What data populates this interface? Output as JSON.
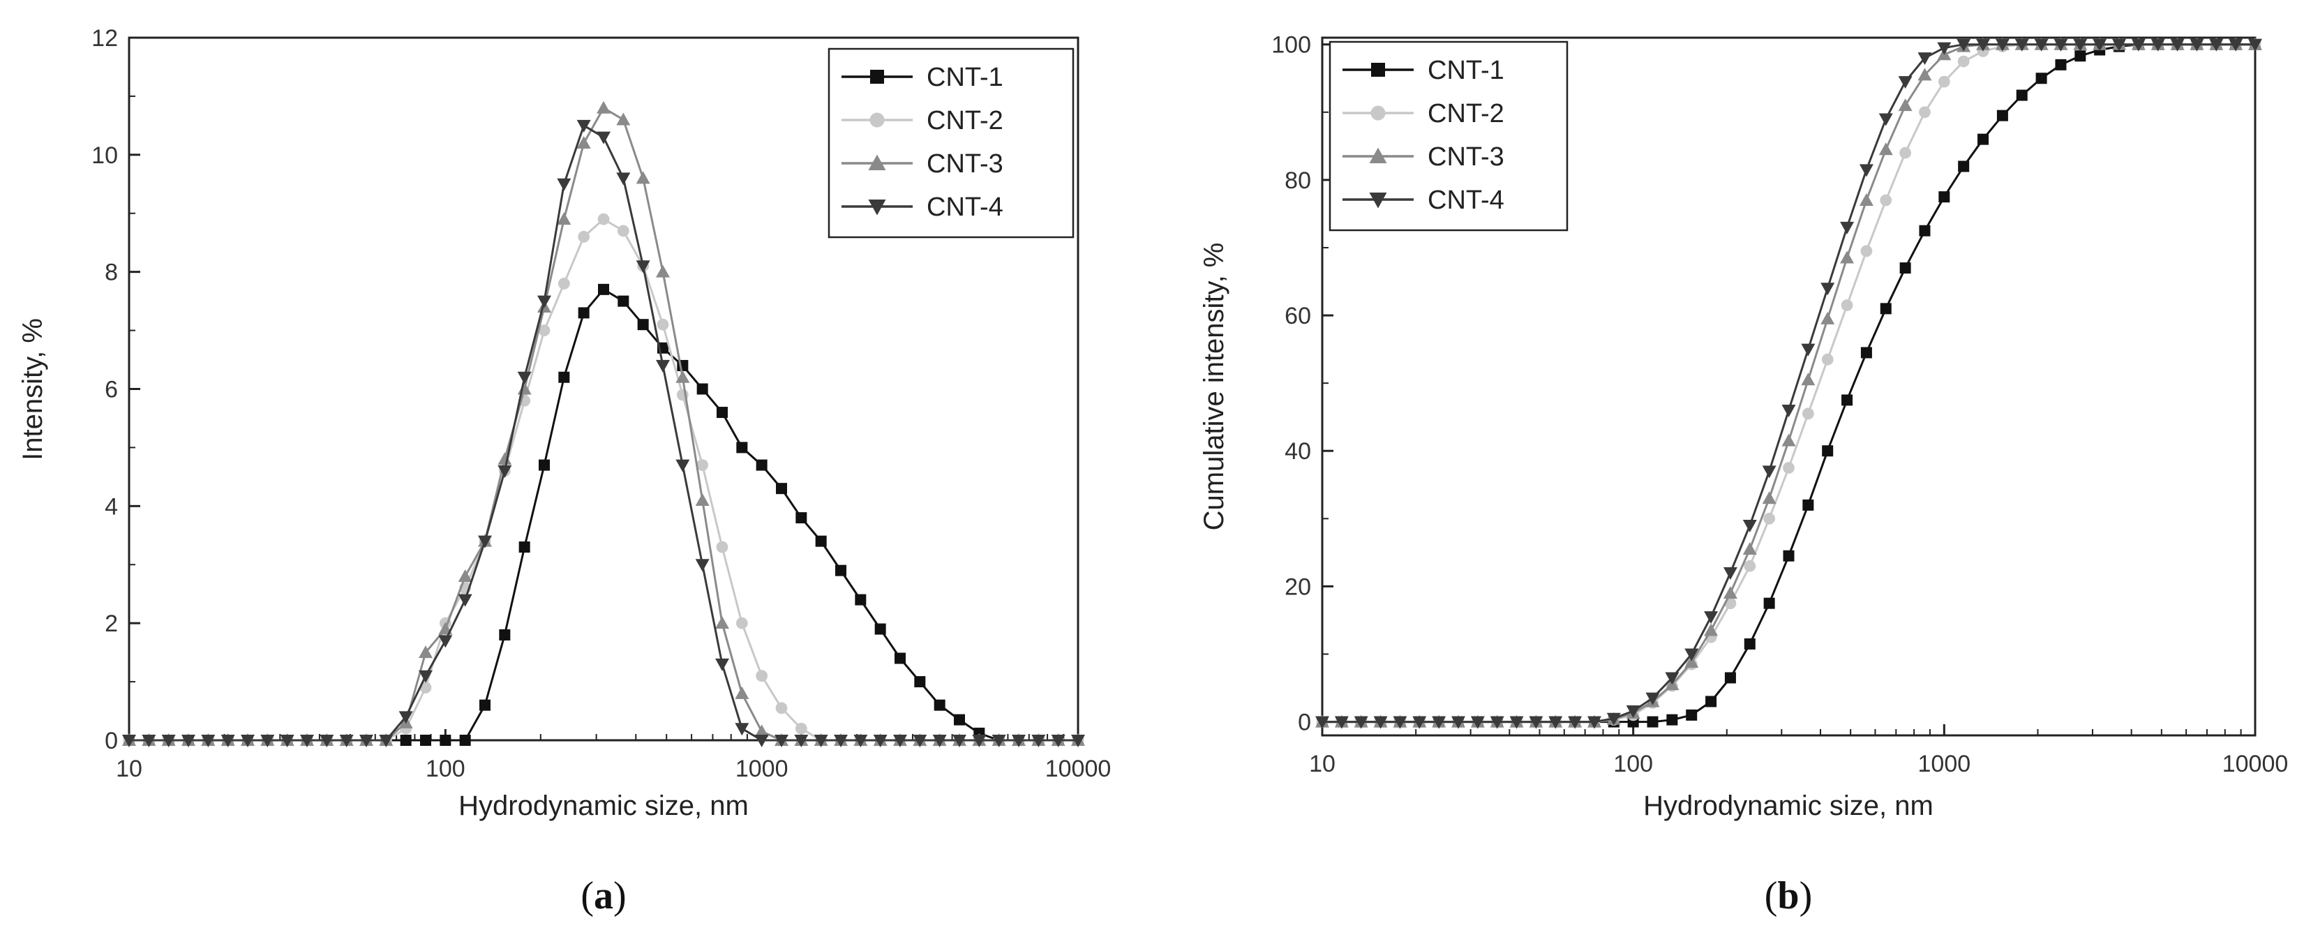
{
  "chart_data": [
    {
      "type": "line",
      "panel_label_open": "(",
      "panel_label_letter": "a",
      "panel_label_close": ")",
      "xlabel": "Hydrodynamic size, nm",
      "ylabel": "Intensity, %",
      "xscale": "log",
      "xlim": [
        10,
        10000
      ],
      "ylim": [
        0,
        12
      ],
      "xticks": [
        10,
        100,
        1000,
        10000
      ],
      "xtick_labels": [
        "10",
        "100",
        "1000",
        "10000"
      ],
      "yticks": [
        0,
        2,
        4,
        6,
        8,
        10,
        12
      ],
      "ytick_labels": [
        "0",
        "2",
        "4",
        "6",
        "8",
        "10",
        "12"
      ],
      "legend_position": "top-right",
      "x_start_log": 1.0,
      "x_step_log": 0.0625,
      "series": [
        {
          "name": "CNT-1",
          "marker": "square",
          "color": "#111111",
          "values": [
            0,
            0,
            0,
            0,
            0,
            0,
            0,
            0,
            0,
            0,
            0,
            0,
            0,
            0,
            0,
            0,
            0,
            0,
            0.6,
            1.8,
            3.3,
            4.7,
            6.2,
            7.3,
            7.7,
            7.5,
            7.1,
            6.7,
            6.4,
            6.0,
            5.6,
            5.0,
            4.7,
            4.3,
            3.8,
            3.4,
            2.9,
            2.4,
            1.9,
            1.4,
            1.0,
            0.6,
            0.35,
            0.12,
            0,
            0,
            0,
            0,
            0
          ]
        },
        {
          "name": "CNT-2",
          "marker": "circle",
          "color": "#c8c8c8",
          "values": [
            0,
            0,
            0,
            0,
            0,
            0,
            0,
            0,
            0,
            0,
            0,
            0,
            0,
            0,
            0.2,
            0.9,
            2.0,
            2.6,
            3.4,
            4.6,
            5.8,
            7.0,
            7.8,
            8.6,
            8.9,
            8.7,
            8.1,
            7.1,
            5.9,
            4.7,
            3.3,
            2.0,
            1.1,
            0.55,
            0.2,
            0,
            0,
            0,
            0,
            0,
            0,
            0,
            0,
            0,
            0,
            0,
            0,
            0,
            0
          ]
        },
        {
          "name": "CNT-3",
          "marker": "triangle-up",
          "color": "#8a8a8a",
          "values": [
            0,
            0,
            0,
            0,
            0,
            0,
            0,
            0,
            0,
            0,
            0,
            0,
            0,
            0,
            0.3,
            1.5,
            1.9,
            2.8,
            3.4,
            4.8,
            6.0,
            7.4,
            8.9,
            10.2,
            10.8,
            10.6,
            9.6,
            8.0,
            6.2,
            4.1,
            2.0,
            0.8,
            0.15,
            0,
            0,
            0,
            0,
            0,
            0,
            0,
            0,
            0,
            0,
            0,
            0,
            0,
            0,
            0,
            0
          ]
        },
        {
          "name": "CNT-4",
          "marker": "triangle-down",
          "color": "#3a3a3a",
          "values": [
            0,
            0,
            0,
            0,
            0,
            0,
            0,
            0,
            0,
            0,
            0,
            0,
            0,
            0,
            0.4,
            1.1,
            1.7,
            2.4,
            3.4,
            4.6,
            6.2,
            7.5,
            9.5,
            10.5,
            10.3,
            9.6,
            8.1,
            6.4,
            4.7,
            3.0,
            1.3,
            0.2,
            0,
            0,
            0,
            0,
            0,
            0,
            0,
            0,
            0,
            0,
            0,
            0,
            0,
            0,
            0,
            0,
            0
          ]
        }
      ]
    },
    {
      "type": "line",
      "panel_label_open": "(",
      "panel_label_letter": "b",
      "panel_label_close": ")",
      "xlabel": "Hydrodynamic size, nm",
      "ylabel": "Cumulative intensity, %",
      "xscale": "log",
      "xlim": [
        10,
        10000
      ],
      "ylim": [
        -2,
        101
      ],
      "xticks": [
        10,
        100,
        1000,
        10000
      ],
      "xtick_labels": [
        "10",
        "100",
        "1000",
        "10000"
      ],
      "yticks": [
        0,
        20,
        40,
        60,
        80,
        100
      ],
      "ytick_labels": [
        "0",
        "20",
        "40",
        "60",
        "80",
        "100"
      ],
      "legend_position": "top-left",
      "x_start_log": 1.0,
      "x_step_log": 0.0625,
      "series": [
        {
          "name": "CNT-1",
          "marker": "square",
          "color": "#111111",
          "values": [
            0,
            0,
            0,
            0,
            0,
            0,
            0,
            0,
            0,
            0,
            0,
            0,
            0,
            0,
            0,
            0,
            0,
            0,
            0.3,
            1.0,
            3.0,
            6.5,
            11.5,
            17.5,
            24.5,
            32.0,
            40.0,
            47.5,
            54.5,
            61.0,
            67.0,
            72.5,
            77.5,
            82.0,
            86.0,
            89.5,
            92.5,
            95.0,
            97.0,
            98.3,
            99.2,
            99.7,
            100,
            100,
            100,
            100,
            100,
            100,
            100
          ]
        },
        {
          "name": "CNT-2",
          "marker": "circle",
          "color": "#c8c8c8",
          "values": [
            0,
            0,
            0,
            0,
            0,
            0,
            0,
            0,
            0,
            0,
            0,
            0,
            0,
            0,
            0,
            0.3,
            1.0,
            2.8,
            5.3,
            8.5,
            12.5,
            17.5,
            23.0,
            30.0,
            37.5,
            45.5,
            53.5,
            61.5,
            69.5,
            77.0,
            84.0,
            90.0,
            94.5,
            97.5,
            99.0,
            99.7,
            100,
            100,
            100,
            100,
            100,
            100,
            100,
            100,
            100,
            100,
            100,
            100,
            100
          ]
        },
        {
          "name": "CNT-3",
          "marker": "triangle-up",
          "color": "#8a8a8a",
          "values": [
            0,
            0,
            0,
            0,
            0,
            0,
            0,
            0,
            0,
            0,
            0,
            0,
            0,
            0,
            0,
            0.4,
            1.3,
            3.0,
            5.5,
            8.8,
            13.5,
            19.0,
            25.5,
            33.0,
            41.5,
            50.5,
            59.5,
            68.5,
            77.0,
            84.5,
            91.0,
            95.5,
            98.5,
            99.7,
            100,
            100,
            100,
            100,
            100,
            100,
            100,
            100,
            100,
            100,
            100,
            100,
            100,
            100,
            100
          ]
        },
        {
          "name": "CNT-4",
          "marker": "triangle-down",
          "color": "#3a3a3a",
          "values": [
            0,
            0,
            0,
            0,
            0,
            0,
            0,
            0,
            0,
            0,
            0,
            0,
            0,
            0,
            0,
            0.5,
            1.6,
            3.5,
            6.5,
            10.0,
            15.5,
            22.0,
            29.0,
            37.0,
            46.0,
            55.0,
            64.0,
            73.0,
            81.5,
            89.0,
            94.5,
            98.0,
            99.5,
            100,
            100,
            100,
            100,
            100,
            100,
            100,
            100,
            100,
            100,
            100,
            100,
            100,
            100,
            100,
            100
          ]
        }
      ]
    }
  ]
}
